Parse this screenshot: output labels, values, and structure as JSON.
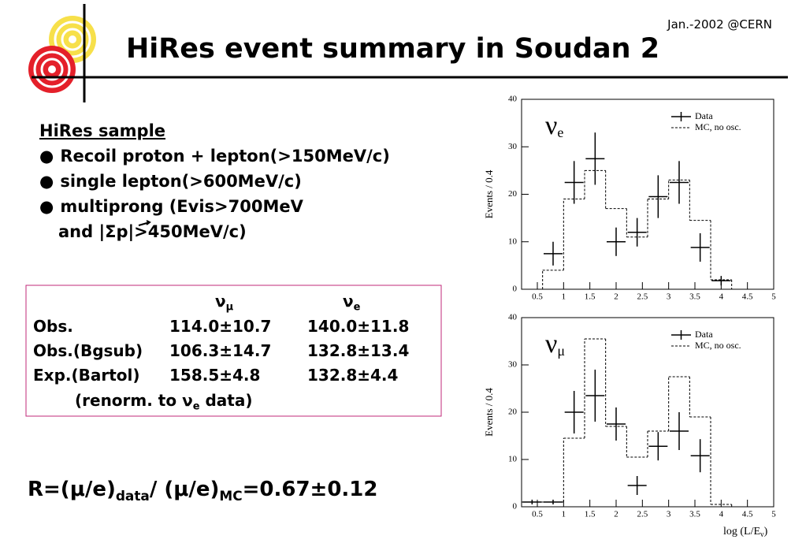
{
  "header": {
    "date": "Jan.-2002 @CERN",
    "title": "HiRes event summary in Soudan 2"
  },
  "sample": {
    "heading": "HiRes sample",
    "bullets": [
      [
        "Recoil proton + lepton(>150MeV/c)"
      ],
      [
        "single lepton(>600MeV/c)"
      ],
      [
        "multiprong (Evis>700MeV",
        "and |Σp|>450MeV/c)"
      ]
    ]
  },
  "table": {
    "columns": [
      {
        "text": "ν",
        "sub": "μ"
      },
      {
        "text": "ν",
        "sub": "e"
      }
    ],
    "rows": [
      [
        "Obs.",
        "114.0±10.7",
        "140.0±11.8"
      ],
      [
        "Obs.(Bgsub)",
        "106.3±14.7",
        "132.8±13.4"
      ],
      [
        "Exp.(Bartol)",
        "158.5±4.8",
        "132.8±4.4"
      ]
    ],
    "note": {
      "text": "(renorm. to ν",
      "sub": "e",
      "tail": " data)"
    }
  },
  "formula": {
    "parts": [
      {
        "text": "R=(μ/e)",
        "sub": "data"
      },
      {
        "text": "/ (μ/e)",
        "sub": "MC"
      }
    ],
    "tail": "=0.67±0.12"
  },
  "chart_data": [
    {
      "type": "histogram",
      "annotation": {
        "text": "ν",
        "sub": "e"
      },
      "ylabel": "Events / 0.4",
      "xlim": [
        0.2,
        5
      ],
      "ylim": [
        0,
        40
      ],
      "xticks": [
        0.5,
        1,
        1.5,
        2,
        2.5,
        3,
        3.5,
        4,
        4.5,
        5
      ],
      "yticks": [
        0,
        10,
        20,
        30,
        40
      ],
      "legend": "upper right",
      "series": [
        {
          "name": "Data",
          "color": "#000000",
          "x": [
            0.8,
            1.2,
            1.6,
            2.0,
            2.4,
            2.8,
            3.2,
            3.6,
            4.0
          ],
          "values": [
            7.5,
            22.5,
            27.5,
            10,
            12,
            19.5,
            22.5,
            8.8,
            1.8
          ],
          "errors": [
            2.5,
            4.5,
            5.5,
            3,
            3,
            4.5,
            4.5,
            3,
            1
          ]
        },
        {
          "name": "MC, no osc.",
          "color": "#000000",
          "bins": [
            0.6,
            1.0,
            1.4,
            1.8,
            2.2,
            2.6,
            3.0,
            3.4,
            3.8,
            4.2
          ],
          "values": [
            4,
            19,
            25,
            17,
            11,
            19,
            23,
            14.5,
            2
          ]
        }
      ]
    },
    {
      "type": "histogram",
      "annotation": {
        "text": "ν",
        "sub": "μ"
      },
      "ylabel": "Events / 0.4",
      "xlabel": {
        "text": "log (L/E",
        "sub": "ν",
        "tail": ")"
      },
      "xlim": [
        0.2,
        5
      ],
      "ylim": [
        0,
        40
      ],
      "xticks": [
        0.5,
        1,
        1.5,
        2,
        2.5,
        3,
        3.5,
        4,
        4.5,
        5
      ],
      "yticks": [
        0,
        10,
        20,
        30,
        40
      ],
      "legend": "upper right",
      "series": [
        {
          "name": "Data",
          "color": "#000000",
          "x": [
            0.4,
            0.8,
            1.2,
            1.6,
            2.0,
            2.4,
            2.8,
            3.2,
            3.6
          ],
          "values": [
            1,
            1,
            20,
            23.5,
            17.5,
            4.5,
            12.8,
            16,
            10.8
          ],
          "errors": [
            0.5,
            0.5,
            4.5,
            5.5,
            3.5,
            2,
            3,
            4,
            3.5
          ]
        },
        {
          "name": "MC, no osc.",
          "color": "#000000",
          "bins": [
            0.2,
            0.6,
            1.0,
            1.4,
            1.8,
            2.2,
            2.6,
            3.0,
            3.4,
            3.8,
            4.2
          ],
          "values": [
            1,
            1,
            14.5,
            35.5,
            17,
            10.5,
            16,
            27.5,
            19,
            0.5
          ]
        }
      ]
    }
  ]
}
